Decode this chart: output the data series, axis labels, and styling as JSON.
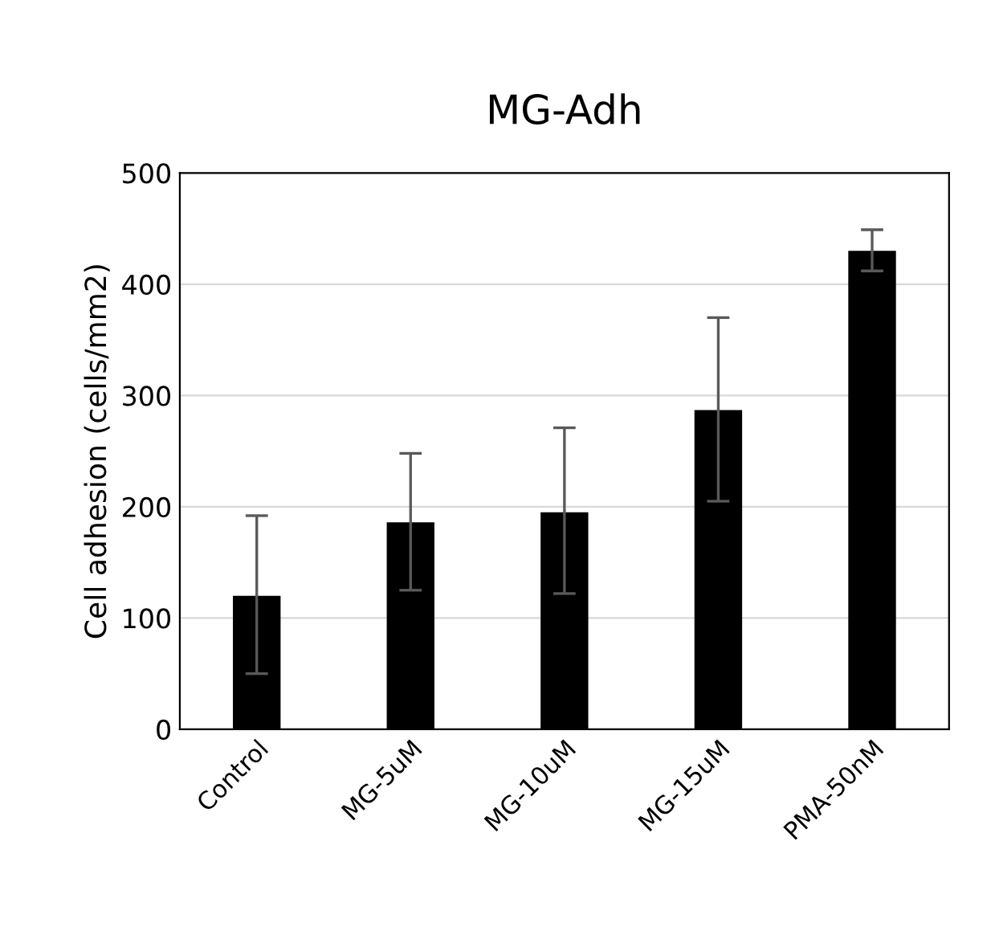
{
  "chart_data": {
    "type": "bar",
    "title": "MG-Adh",
    "ylabel": "Cell adhesion (cells/mm2)",
    "categories": [
      "Control",
      "MG-5uM",
      "MG-10uM",
      "MG-15uM",
      "PMA-50nM"
    ],
    "values": [
      120,
      186,
      195,
      287,
      430
    ],
    "errors": [
      [
        50,
        192
      ],
      [
        125,
        248
      ],
      [
        122,
        271
      ],
      [
        205,
        370
      ],
      [
        412,
        449
      ]
    ],
    "color": "#000000",
    "ylim": [
      0,
      500
    ],
    "yticks": [
      0,
      100,
      200,
      300,
      400,
      500
    ],
    "grid": "y",
    "legend": false
  }
}
